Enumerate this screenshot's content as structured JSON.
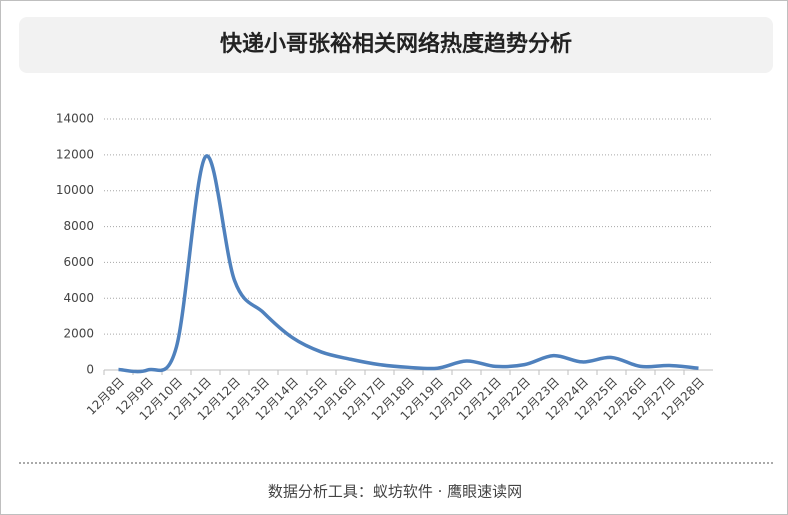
{
  "chart_data": {
    "type": "line",
    "title": "快递小哥张裕相关网络热度趋势分析",
    "categories": [
      "12月8日",
      "12月9日",
      "12月10日",
      "12月11日",
      "12月12日",
      "12月13日",
      "12月14日",
      "12月15日",
      "12月16日",
      "12月17日",
      "12月18日",
      "12月19日",
      "12月20日",
      "12月21日",
      "12月22日",
      "12月23日",
      "12月24日",
      "12月25日",
      "12月26日",
      "12月27日",
      "12月28日"
    ],
    "values": [
      30,
      0,
      1300,
      11900,
      5000,
      3200,
      1800,
      1000,
      600,
      300,
      150,
      100,
      500,
      200,
      300,
      800,
      450,
      700,
      200,
      250,
      100
    ],
    "color": "#4f81bd",
    "smooth": true,
    "grid": true,
    "ylim": [
      0,
      14000
    ],
    "yticks": [
      0,
      2000,
      4000,
      6000,
      8000,
      10000,
      12000,
      14000
    ]
  },
  "footer": "数据分析工具：蚁坊软件 · 鹰眼速读网"
}
